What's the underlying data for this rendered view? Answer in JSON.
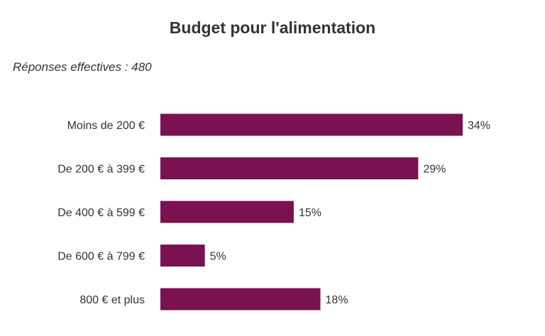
{
  "chart_data": {
    "type": "bar",
    "orientation": "horizontal",
    "title": "Budget pour l'alimentation",
    "subtitle": "Réponses effectives : 480",
    "categories": [
      "Moins de 200 €",
      "De 200 € à 399 €",
      "De 400 € à 599 €",
      "De 600 € à 799 €",
      "800 € et plus"
    ],
    "values": [
      34,
      29,
      15,
      5,
      18
    ],
    "value_labels": [
      "34%",
      "29%",
      "15%",
      "5%",
      "18%"
    ],
    "unit": "%",
    "xlim": [
      0,
      34
    ],
    "grid": false,
    "legend": "none",
    "bar_color": "#7a1150"
  }
}
